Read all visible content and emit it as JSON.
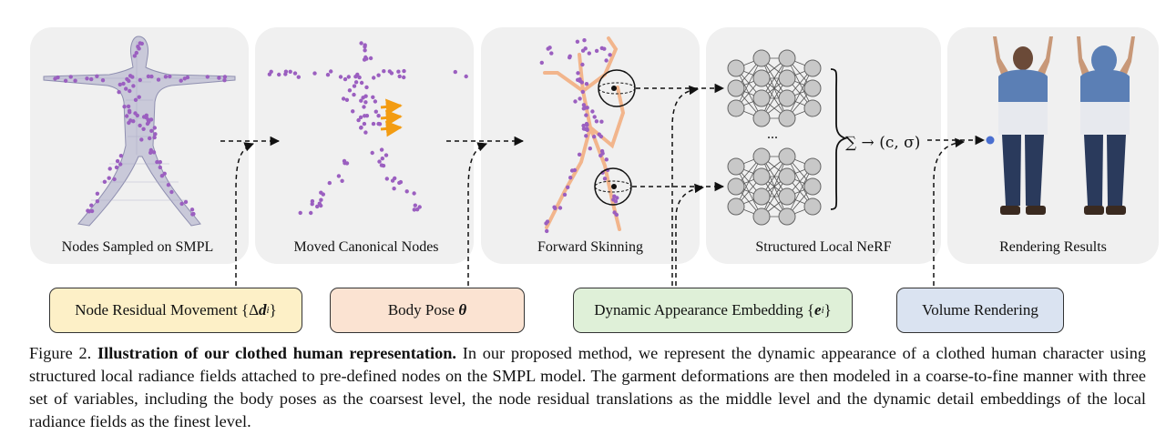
{
  "panels": [
    {
      "label": "Nodes Sampled on SMPL"
    },
    {
      "label": "Moved Canonical Nodes"
    },
    {
      "label": "Forward Skinning"
    },
    {
      "label": "Structured Local NeRF"
    },
    {
      "label": "Rendering Results"
    }
  ],
  "boxes": {
    "node_residual": {
      "text": "Node Residual Movement {Δ",
      "var": "d",
      "sub": "i",
      "close": "}",
      "color": "#fdf0c7"
    },
    "body_pose": {
      "text": "Body Pose ",
      "var": "θ",
      "color": "#fbe3d2"
    },
    "appearance": {
      "text": "Dynamic Appearance Embedding {",
      "var": "e",
      "sub": "i",
      "close": "}",
      "color": "#dff0d8"
    },
    "volume": {
      "text": "Volume Rendering",
      "color": "#dae3f1"
    }
  },
  "nerf": {
    "sum_formula": "∑ → (c, σ)",
    "ellipsis": "..."
  },
  "caption": {
    "prefix": "Figure 2. ",
    "title": "Illustration of our clothed human representation.",
    "body": " In our proposed method, we represent the dynamic appearance of a clothed human character using structured local radiance fields attached to pre-defined nodes on the SMPL model.  The garment deformations are then modeled in a coarse-to-fine manner with three set of variables, including the body poses as the coarsest level, the node residual translations as the middle level and the dynamic detail embeddings of the local radiance fields as the finest level."
  },
  "colors": {
    "panel_bg": "#f0f0f0",
    "node": "#9b5fc0",
    "skeleton": "#f2b58c",
    "arrow_orange": "#f39c12",
    "neuron": "#c8c8c8",
    "hoodie": "#5b7fb5",
    "jeans": "#2a3a5c"
  }
}
